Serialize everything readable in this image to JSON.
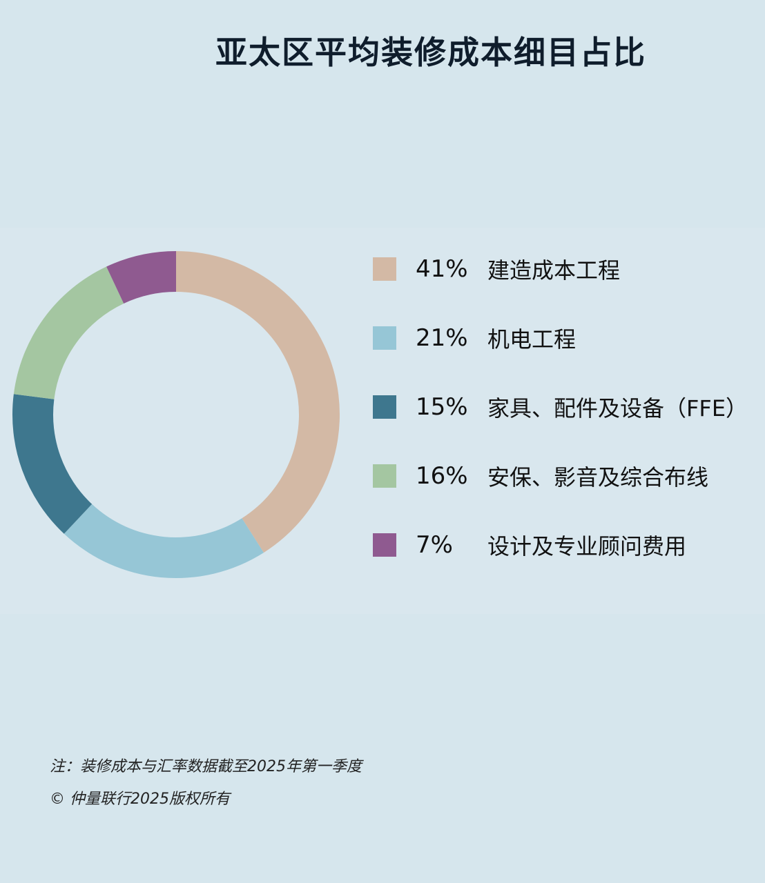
{
  "title": "亚太区平均装修成本细目占比",
  "chart_data": {
    "type": "pie",
    "style": "donut",
    "title": "亚太区平均装修成本细目占比",
    "legend_position": "right",
    "series": [
      {
        "name": "建造成本工程",
        "label": "41%",
        "value": 41,
        "color": "#d3b9a5"
      },
      {
        "name": "机电工程",
        "label": "21%",
        "value": 21,
        "color": "#96c6d6"
      },
      {
        "name": "家具、配件及设备（FFE）",
        "label": "15%",
        "value": 15,
        "color": "#3e778e"
      },
      {
        "name": "安保、影音及综合布线",
        "label": "16%",
        "value": 16,
        "color": "#a4c6a1"
      },
      {
        "name": "设计及专业顾问费用",
        "label": "7%",
        "value": 7,
        "color": "#8f5a90"
      }
    ]
  },
  "footer": {
    "note": "注：装修成本与汇率数据截至2025年第一季度",
    "copyright": "© 仲量联行2025版权所有"
  }
}
